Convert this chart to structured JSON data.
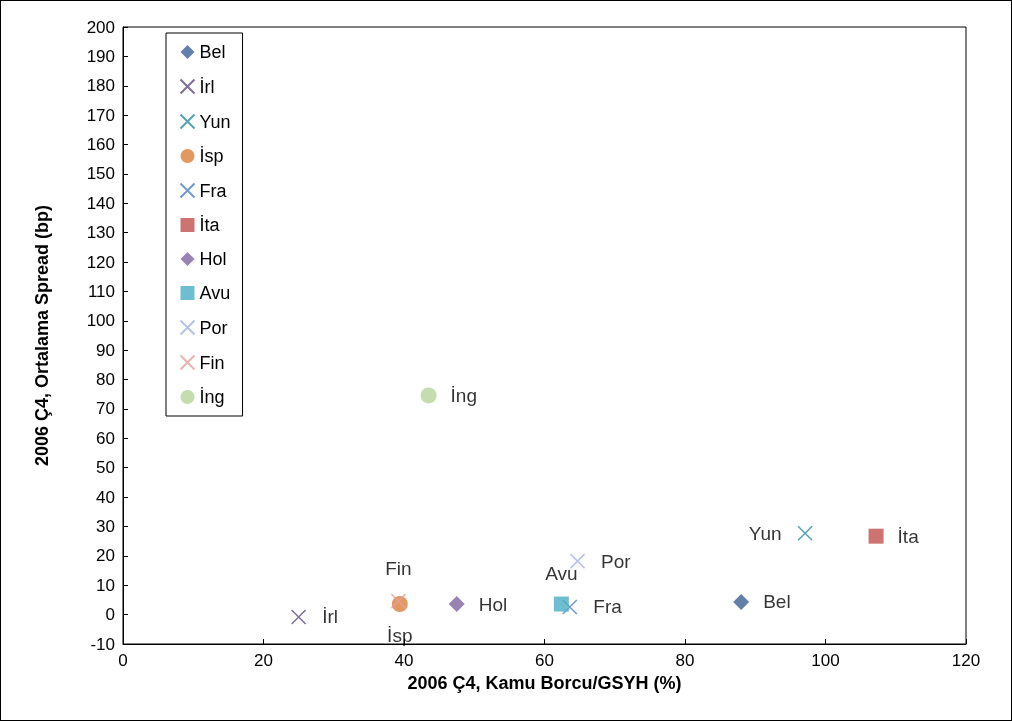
{
  "chart_data": {
    "type": "scatter",
    "xlabel": "2006 Ç4, Kamu Borcu/GSYH (%)",
    "ylabel": "2006 Ç4, Ortalama Spread (bp)",
    "xlim": [
      0,
      120
    ],
    "xticks": [
      0,
      20,
      40,
      60,
      80,
      100,
      120
    ],
    "ylim": [
      -10,
      200
    ],
    "yticks": [
      -10,
      0,
      10,
      20,
      30,
      40,
      50,
      60,
      70,
      80,
      90,
      100,
      110,
      120,
      130,
      140,
      150,
      160,
      170,
      180,
      190,
      200
    ],
    "grid": false,
    "legend": "top left",
    "series": [
      {
        "name": "Bel",
        "color": "#3c5f95",
        "marker": "diamond",
        "x": [
          88.0
        ],
        "values": [
          4.3
        ]
      },
      {
        "name": "İrl",
        "color": "#5f4a7b",
        "marker": "cross",
        "x": [
          25.0
        ],
        "values": [
          -0.8
        ]
      },
      {
        "name": "Yun",
        "color": "#2e8a9c",
        "marker": "cross",
        "x": [
          97.1
        ],
        "values": [
          27.7
        ]
      },
      {
        "name": "İsp",
        "color": "#d9803a",
        "marker": "circle",
        "x": [
          39.4
        ],
        "values": [
          3.6
        ]
      },
      {
        "name": "Fra",
        "color": "#4f81bd",
        "marker": "cross",
        "x": [
          63.6
        ],
        "values": [
          2.6
        ]
      },
      {
        "name": "İta",
        "color": "#c0504d",
        "marker": "square",
        "x": [
          107.2
        ],
        "values": [
          26.7
        ]
      },
      {
        "name": "Hol",
        "color": "#8064a2",
        "marker": "diamond",
        "x": [
          47.5
        ],
        "values": [
          3.6
        ]
      },
      {
        "name": "Avu",
        "color": "#4bacc6",
        "marker": "square",
        "x": [
          62.4
        ],
        "values": [
          3.6
        ]
      },
      {
        "name": "Por",
        "color": "#a5b4dc",
        "marker": "cross",
        "x": [
          64.7
        ],
        "values": [
          18.2
        ]
      },
      {
        "name": "Fin",
        "color": "#e6a09e",
        "marker": "cross",
        "x": [
          39.2
        ],
        "values": [
          4.6
        ]
      },
      {
        "name": "İng",
        "color": "#b6d39a",
        "marker": "circle",
        "x": [
          43.5
        ],
        "values": [
          74.6
        ]
      }
    ]
  }
}
